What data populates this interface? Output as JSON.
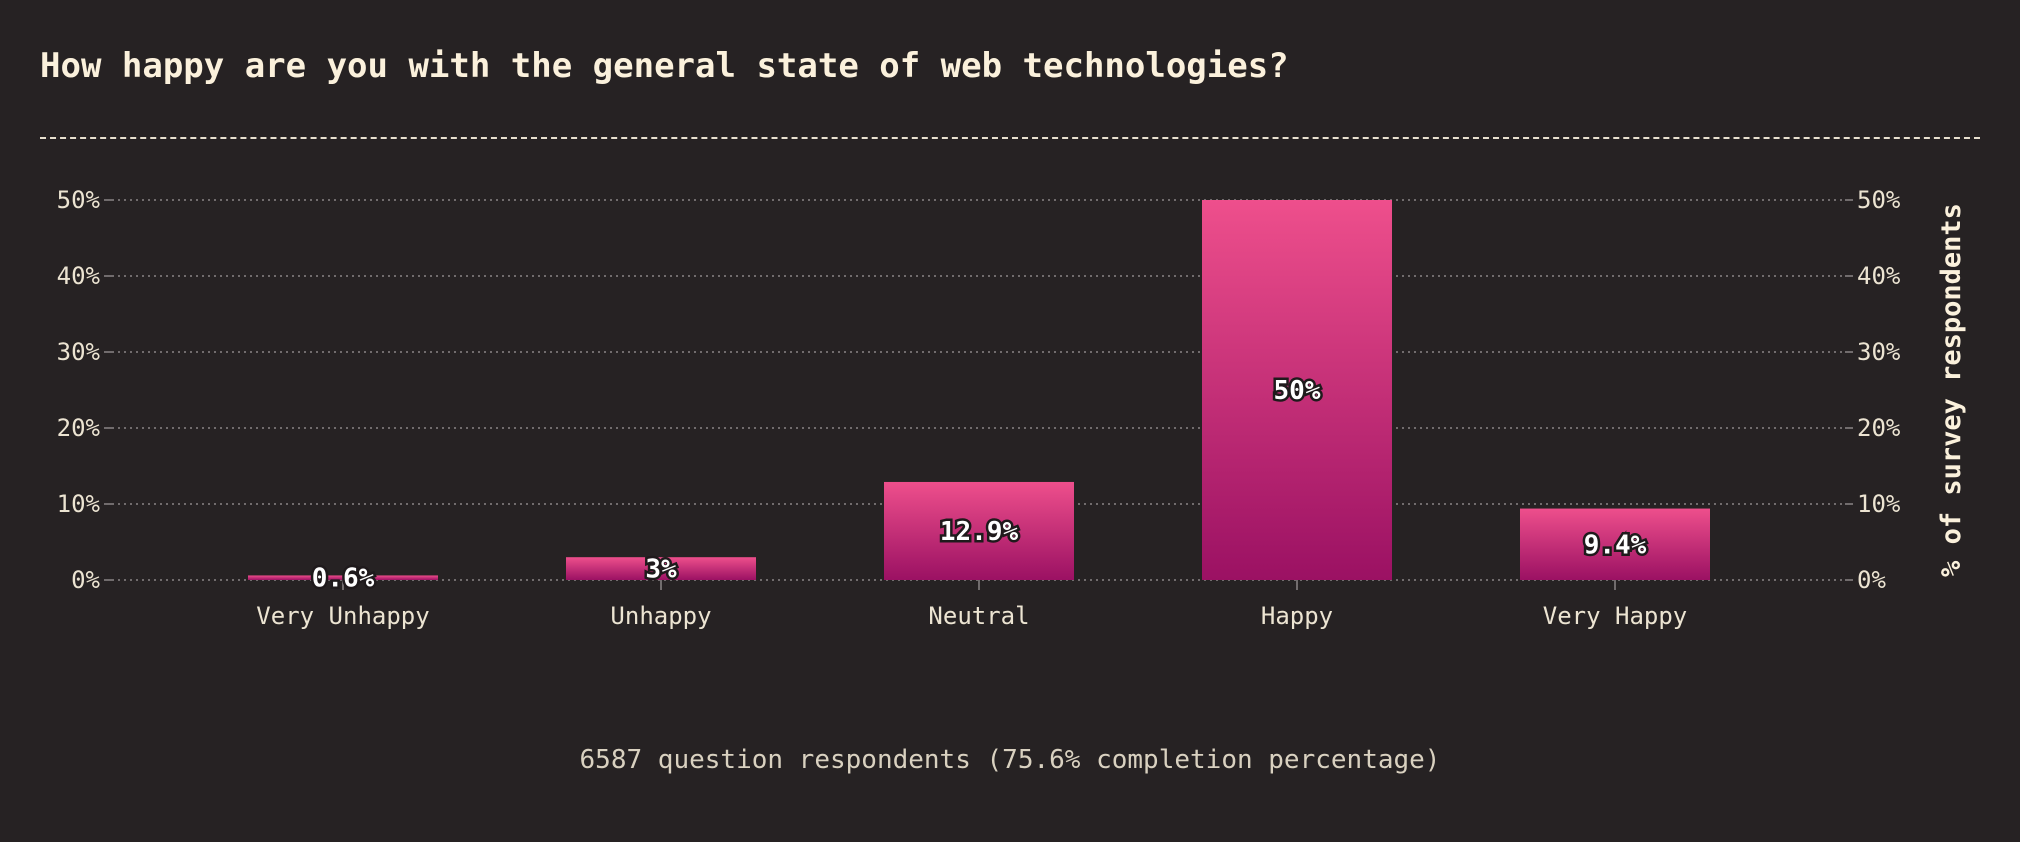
{
  "title": "How happy are you with the general state of web technologies?",
  "footnote": "6587 question respondents (75.6% completion percentage)",
  "colors": {
    "background": "#262223",
    "bar_top": "#ee4f8c",
    "bar_bottom": "#9b1163",
    "grid": "#8a8486",
    "text": "#ece4d2"
  },
  "chart_data": {
    "type": "bar",
    "title": "How happy are you with the general state of web technologies?",
    "categories": [
      "Very Unhappy",
      "Unhappy",
      "Neutral",
      "Happy",
      "Very Happy"
    ],
    "values": [
      0.6,
      3,
      12.9,
      50,
      9.4
    ],
    "value_labels": [
      "0.6%",
      "3%",
      "12.9%",
      "50%",
      "9.4%"
    ],
    "xlabel": "",
    "ylabel": "% of survey respondents",
    "ylim": [
      0,
      50
    ],
    "yticks": [
      0,
      10,
      20,
      30,
      40,
      50
    ],
    "ytick_labels": [
      "0%",
      "10%",
      "20%",
      "30%",
      "40%",
      "50%"
    ],
    "grid": true,
    "y_axis_both_sides": true
  }
}
